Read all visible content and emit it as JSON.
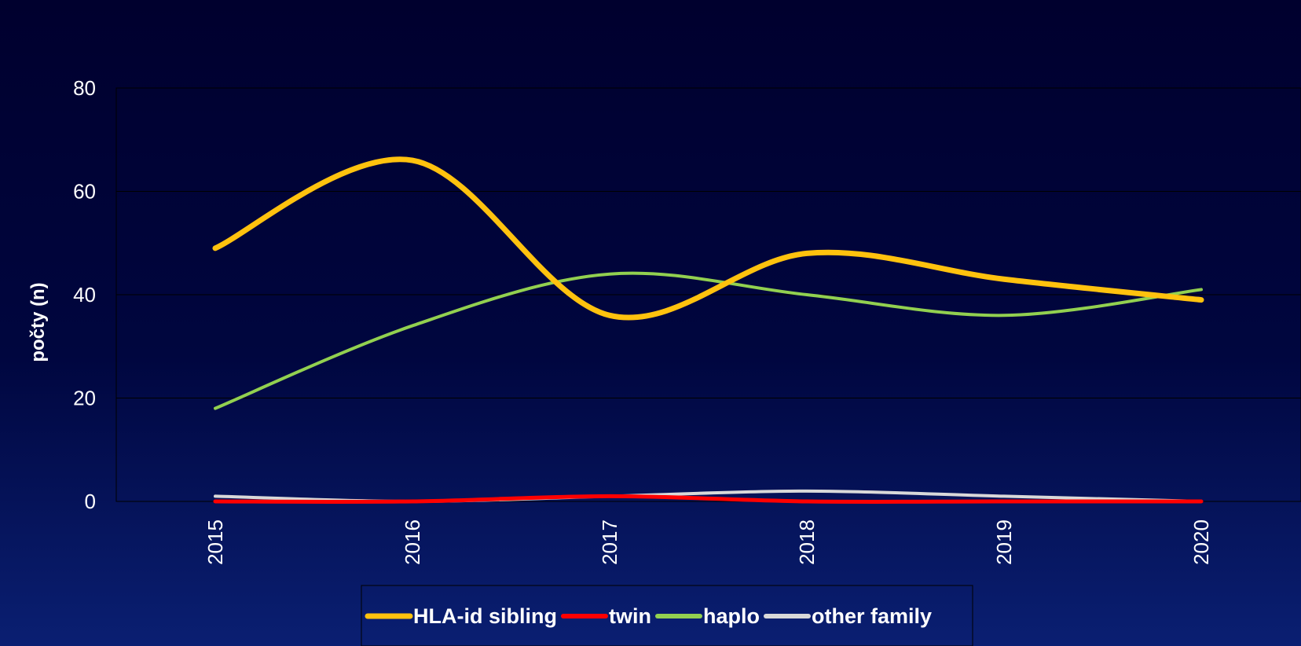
{
  "chart_data": {
    "type": "line",
    "title": "",
    "xlabel": "",
    "ylabel": "počty (n)",
    "x": [
      "2015",
      "2016",
      "2017",
      "2018",
      "2019",
      "2020"
    ],
    "ylim": [
      0,
      80
    ],
    "yticks": [
      "0",
      "20",
      "40",
      "60",
      "80"
    ],
    "grid": true,
    "smooth": true,
    "legend_position": "bottom",
    "series": [
      {
        "name": "HLA-id sibling",
        "values": [
          49,
          66,
          36,
          48,
          43,
          39
        ],
        "color": "#ffc20e",
        "width": 7
      },
      {
        "name": "twin",
        "values": [
          0,
          0,
          1,
          0,
          0,
          0
        ],
        "color": "#ff0000",
        "width": 5
      },
      {
        "name": "haplo",
        "values": [
          18,
          34,
          44,
          40,
          36,
          41
        ],
        "color": "#92d050",
        "width": 4
      },
      {
        "name": "other family",
        "values": [
          1,
          0,
          1,
          2,
          1,
          0
        ],
        "color": "#d9d9d9",
        "width": 4
      }
    ]
  }
}
